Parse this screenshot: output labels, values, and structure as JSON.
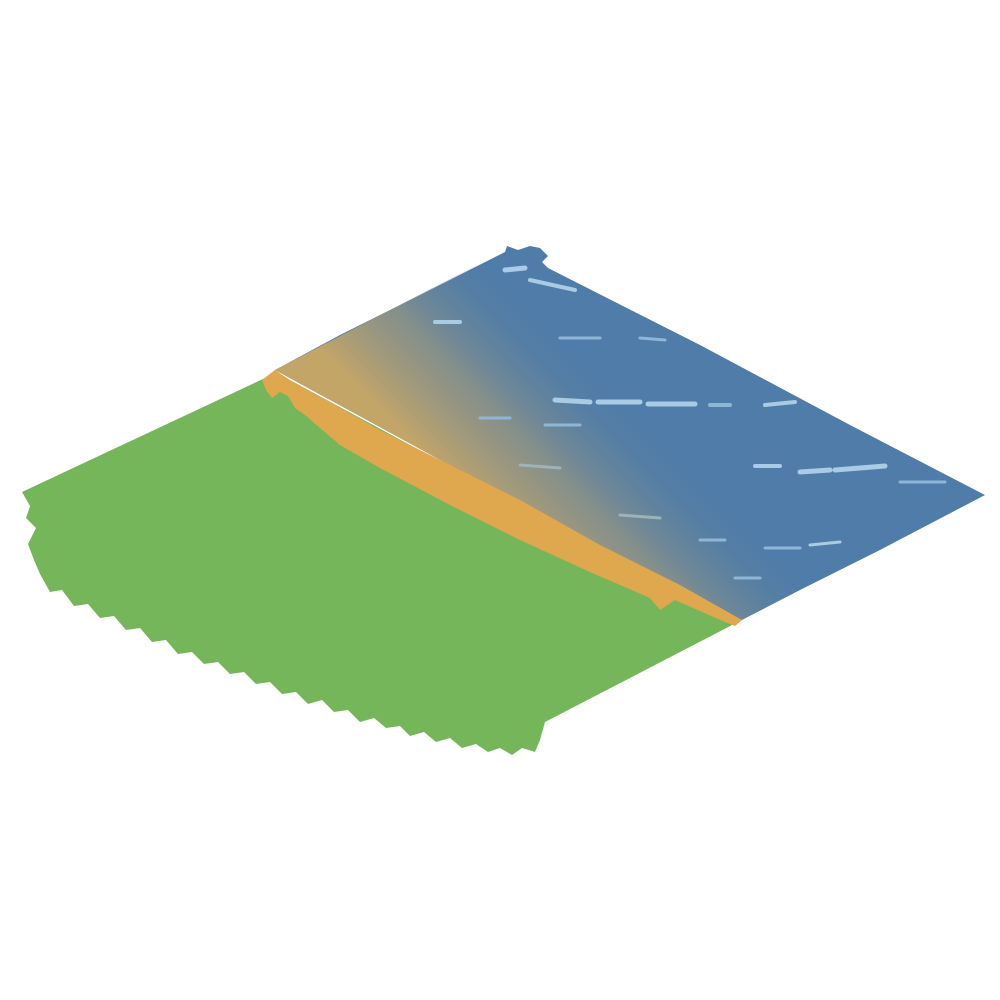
{
  "tile": {
    "kind": "isometric-shore-tile",
    "regions": [
      "grass",
      "sand",
      "water"
    ],
    "colors": {
      "background": "#ffffff",
      "grass": "#76b65a",
      "sand": "#dfa84e",
      "water": "#4f7ca8",
      "water_highlight": "#a9cbe3",
      "shallows": "#b8a36a"
    }
  }
}
